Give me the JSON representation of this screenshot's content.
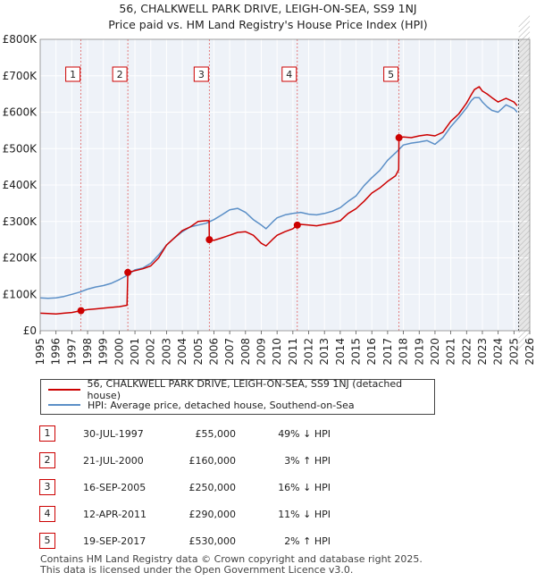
{
  "title_line1": "56, CHALKWELL PARK DRIVE, LEIGH-ON-SEA, SS9 1NJ",
  "title_line2": "Price paid vs. HM Land Registry's House Price Index (HPI)",
  "chart_data": {
    "type": "line",
    "ylim": [
      0,
      800000
    ],
    "xlim": [
      1995,
      2026
    ],
    "y_ticks": [
      0,
      100000,
      200000,
      300000,
      400000,
      500000,
      600000,
      700000,
      800000
    ],
    "y_tick_labels": [
      "£0",
      "£100K",
      "£200K",
      "£300K",
      "£400K",
      "£500K",
      "£600K",
      "£700K",
      "£800K"
    ],
    "x_ticks": [
      1995,
      1996,
      1997,
      1998,
      1999,
      2000,
      2001,
      2002,
      2003,
      2004,
      2005,
      2006,
      2007,
      2008,
      2009,
      2010,
      2011,
      2012,
      2013,
      2014,
      2015,
      2016,
      2017,
      2018,
      2019,
      2020,
      2021,
      2022,
      2023,
      2024,
      2025,
      2026
    ],
    "x_tick_labels": [
      "1995",
      "1996",
      "1997",
      "1998",
      "1999",
      "2000",
      "2001",
      "2002",
      "2003",
      "2004",
      "2005",
      "2006",
      "2007",
      "2008",
      "2009",
      "2010",
      "2011",
      "2012",
      "2013",
      "2014",
      "2015",
      "2016",
      "2017",
      "2018",
      "2019",
      "2020",
      "2021",
      "2022",
      "2023",
      "2024",
      "2025",
      "2026"
    ],
    "future_from": 2025.3,
    "series": [
      {
        "name": "56, CHALKWELL PARK DRIVE, LEIGH-ON-SEA, SS9 1NJ (detached house)",
        "color": "#cc0000",
        "x": [
          1995,
          1995.5,
          1996,
          1996.5,
          1997,
          1997.58,
          1998,
          1998.5,
          1999,
          1999.5,
          2000,
          2000.5,
          2000.55,
          2001,
          2001.5,
          2002,
          2002.5,
          2003,
          2003.5,
          2004,
          2004.5,
          2005,
          2005.5,
          2005.7,
          2005.71,
          2006,
          2006.5,
          2007,
          2007.5,
          2008,
          2008.5,
          2009,
          2009.3,
          2009.7,
          2010,
          2010.5,
          2011,
          2011.28,
          2011.5,
          2012,
          2012.5,
          2013,
          2013.5,
          2014,
          2014.5,
          2015,
          2015.5,
          2016,
          2016.5,
          2017,
          2017.5,
          2017.7,
          2017.72,
          2018,
          2018.5,
          2019,
          2019.5,
          2020,
          2020.5,
          2021,
          2021.5,
          2022,
          2022.3,
          2022.5,
          2022.8,
          2023,
          2023.3,
          2023.6,
          2024,
          2024.5,
          2025,
          2025.2
        ],
        "y": [
          48000,
          47000,
          46000,
          48000,
          50000,
          55000,
          58000,
          60000,
          62000,
          64000,
          66000,
          70000,
          160000,
          165000,
          170000,
          178000,
          200000,
          235000,
          255000,
          275000,
          285000,
          300000,
          302000,
          302000,
          250000,
          248000,
          255000,
          262000,
          270000,
          272000,
          262000,
          240000,
          233000,
          250000,
          262000,
          272000,
          280000,
          290000,
          292000,
          290000,
          288000,
          292000,
          296000,
          302000,
          322000,
          335000,
          355000,
          378000,
          392000,
          410000,
          425000,
          442000,
          530000,
          532000,
          530000,
          535000,
          538000,
          535000,
          545000,
          575000,
          595000,
          625000,
          648000,
          662000,
          670000,
          658000,
          650000,
          640000,
          628000,
          638000,
          628000,
          618000
        ]
      },
      {
        "name": "HPI: Average price, detached house, Southend-on-Sea",
        "color": "#5b8fc7",
        "x": [
          1995,
          1995.5,
          1996,
          1996.5,
          1997,
          1997.5,
          1998,
          1998.5,
          1999,
          1999.5,
          2000,
          2000.5,
          2001,
          2001.5,
          2002,
          2002.5,
          2003,
          2003.5,
          2004,
          2004.5,
          2005,
          2005.5,
          2006,
          2006.5,
          2007,
          2007.5,
          2008,
          2008.5,
          2009,
          2009.3,
          2009.7,
          2010,
          2010.5,
          2011,
          2011.5,
          2012,
          2012.5,
          2013,
          2013.5,
          2014,
          2014.5,
          2015,
          2015.5,
          2016,
          2016.5,
          2017,
          2017.5,
          2018,
          2018.5,
          2019,
          2019.5,
          2020,
          2020.5,
          2021,
          2021.5,
          2022,
          2022.3,
          2022.5,
          2022.8,
          2023,
          2023.3,
          2023.6,
          2024,
          2024.5,
          2025,
          2025.2
        ],
        "y": [
          90000,
          89000,
          90000,
          94000,
          100000,
          106000,
          114000,
          120000,
          124000,
          130000,
          140000,
          152000,
          167000,
          172000,
          185000,
          208000,
          235000,
          255000,
          272000,
          285000,
          290000,
          295000,
          305000,
          318000,
          332000,
          336000,
          325000,
          305000,
          290000,
          280000,
          298000,
          310000,
          318000,
          322000,
          325000,
          320000,
          318000,
          322000,
          328000,
          338000,
          355000,
          370000,
          398000,
          420000,
          440000,
          468000,
          488000,
          510000,
          515000,
          518000,
          522000,
          512000,
          530000,
          560000,
          585000,
          612000,
          632000,
          640000,
          640000,
          628000,
          615000,
          605000,
          600000,
          620000,
          610000,
          600000
        ]
      }
    ],
    "sales": [
      {
        "n": "1",
        "x": 1997.58,
        "y": 55000
      },
      {
        "n": "2",
        "x": 2000.55,
        "y": 160000
      },
      {
        "n": "3",
        "x": 2005.71,
        "y": 250000
      },
      {
        "n": "4",
        "x": 2011.28,
        "y": 290000
      },
      {
        "n": "5",
        "x": 2017.72,
        "y": 530000
      }
    ]
  },
  "legend": {
    "red": "56, CHALKWELL PARK DRIVE, LEIGH-ON-SEA, SS9 1NJ (detached house)",
    "blue": "HPI: Average price, detached house, Southend-on-Sea"
  },
  "table": [
    {
      "n": "1",
      "date": "30-JUL-1997",
      "price": "£55,000",
      "hpi": "49% ↓ HPI"
    },
    {
      "n": "2",
      "date": "21-JUL-2000",
      "price": "£160,000",
      "hpi": "3% ↑ HPI"
    },
    {
      "n": "3",
      "date": "16-SEP-2005",
      "price": "£250,000",
      "hpi": "16% ↓ HPI"
    },
    {
      "n": "4",
      "date": "12-APR-2011",
      "price": "£290,000",
      "hpi": "11% ↓ HPI"
    },
    {
      "n": "5",
      "date": "19-SEP-2017",
      "price": "£530,000",
      "hpi": "2% ↑ HPI"
    }
  ],
  "footer_line1": "Contains HM Land Registry data © Crown copyright and database right 2025.",
  "footer_line2": "This data is licensed under the Open Government Licence v3.0."
}
